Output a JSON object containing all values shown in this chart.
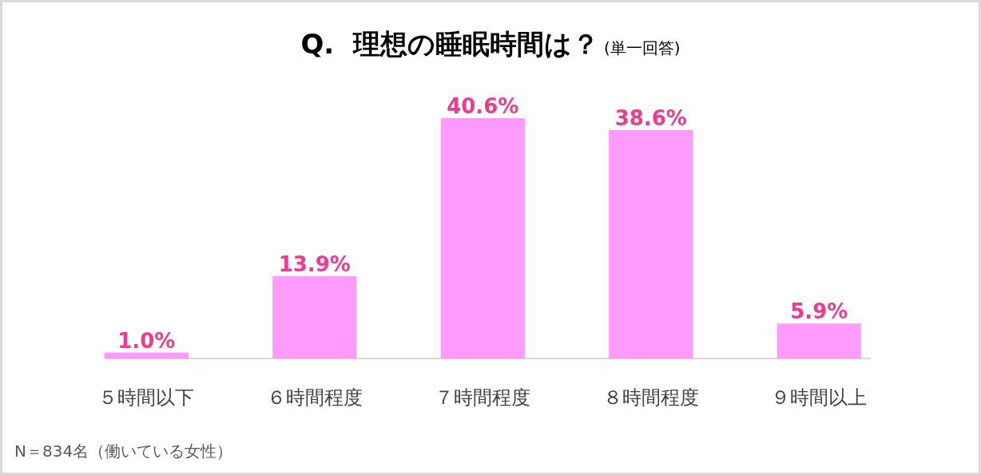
{
  "chart_data": {
    "type": "bar",
    "title": "Q.  理想の睡眠時間は？",
    "subtitle": "(単一回答)",
    "categories": [
      "５時間以下",
      "６時間程度",
      "７時間程度",
      "８時間程度",
      "９時間以上"
    ],
    "values": [
      1.0,
      13.9,
      40.6,
      38.6,
      5.9
    ],
    "color": "#ff9bff",
    "value_labels": [
      "1.0%",
      "13.9%",
      "40.6%",
      "38.6%",
      "5.9%"
    ],
    "annotations": [
      "N＝834名（働いている女性）"
    ]
  }
}
